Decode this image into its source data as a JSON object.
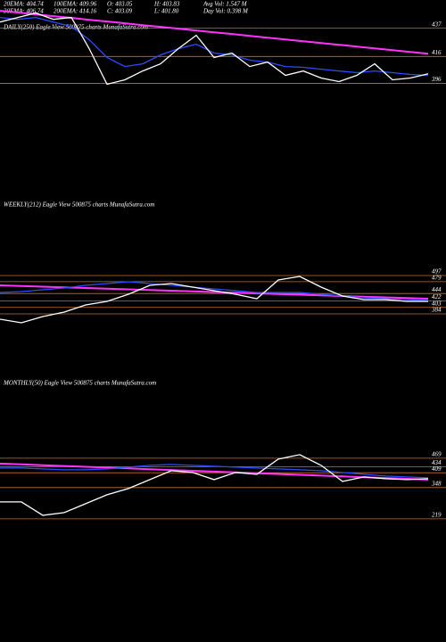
{
  "header": {
    "row1": [
      "20EMA: 404.74",
      "100EMA: 409.96",
      "O: 403.05",
      "H: 403.83",
      "Avg Vol: 1.547 M"
    ],
    "row2": [
      "30EMA: 406.74",
      "200EMA: 414.16",
      "C: 403.09",
      "L: 401.80",
      "Day Vol: 0.398 M"
    ]
  },
  "chart_data": [
    {
      "type": "line",
      "title": "DAILY(250) Eagle  View  500875 charts MunafaSutra.com",
      "ylim": [
        312,
        458
      ],
      "yticks": [
        437,
        416,
        396
      ],
      "grid": true,
      "grid_color": "#c8702a",
      "series": [
        {
          "color": "#ff33ff",
          "values": [
            450,
            448.7,
            447.3,
            446,
            444.7,
            443.3,
            442,
            440.7,
            439.3,
            438,
            436.7,
            435.3,
            434,
            432.7,
            431.3,
            430,
            428.7,
            427.3,
            426,
            424.7,
            423.3,
            422,
            420.7,
            419.3,
            418
          ]
        },
        {
          "color": "#2a4dff",
          "values": [
            445.0,
            443.6,
            445.0,
            441.6,
            438.3,
            428.4,
            415.2,
            408.5,
            410.5,
            417.1,
            421.8,
            425.1,
            418.5,
            417.1,
            413.2,
            411.8,
            408.5,
            407.9,
            406.5,
            405.2,
            403.9,
            405.2,
            403.9,
            402.6,
            401.9
          ]
        },
        {
          "color": "#ffffff",
          "values": [
            441.6,
            445.0,
            448.3,
            443.6,
            445.0,
            421.8,
            395.3,
            398.6,
            405.2,
            410.5,
            421.8,
            431.7,
            415.2,
            418.5,
            408.5,
            411.8,
            401.9,
            405.2,
            399.9,
            397.3,
            401.9,
            410.5,
            398.6,
            399.9,
            403.1
          ]
        }
      ]
    },
    {
      "type": "line",
      "title": "WEEKLY(212) Eagle  View  500875 charts MunafaSutra.com",
      "ylim": [
        126,
        705
      ],
      "yticks": [
        497,
        479,
        444,
        422,
        403,
        384
      ],
      "grid": true,
      "grid_color": "#c8702a",
      "series": [
        {
          "color": "#ff33ff",
          "values": [
            468.1,
            466.1,
            464.2,
            462.2,
            460.2,
            458.2,
            456.2,
            454.3,
            452.3,
            450.3,
            448.4,
            446.4,
            444.4,
            442.4,
            440.4,
            438.5,
            436.5,
            434.5,
            432.5,
            430.6,
            428.6
          ]
        },
        {
          "color": "#2a4dff",
          "values": [
            447,
            449.6,
            454.9,
            460.2,
            468.1,
            473.3,
            478.6,
            473.3,
            468.1,
            462.8,
            457.5,
            452.3,
            447,
            447,
            447,
            441.7,
            436.5,
            431.2,
            428.6,
            425.9,
            423.3
          ]
        },
        {
          "color": "#ffffff",
          "values": [
            368.1,
            357.5,
            376.0,
            389.1,
            410.2,
            420.7,
            441.7,
            468.1,
            473.3,
            462.8,
            452.3,
            441.7,
            428.6,
            483.8,
            494.4,
            462.8,
            436.5,
            425.9,
            425.9,
            420.7,
            420.7
          ]
        }
      ]
    },
    {
      "type": "line",
      "title": "MONTHLY(50) Eagle  View  500875 charts MunafaSutra.com",
      "ylim": [
        -215,
        667
      ],
      "yticks": [
        469,
        434,
        409,
        348,
        219
      ],
      "grid": true,
      "grid_color": "#c8702a",
      "series": [
        {
          "color": "#ff33ff",
          "values": [
            447,
            443.7,
            440.4,
            437.1,
            433.8,
            430.5,
            427.1,
            423.8,
            420.5,
            417.2,
            413.9,
            410.6,
            407.3,
            404,
            400.7,
            397.4,
            394,
            390.7,
            387.4,
            384.1,
            380.8
          ]
        },
        {
          "color": "#2a4dff",
          "values": [
            428.6,
            428.6,
            424.9,
            421.2,
            421.2,
            424.9,
            432.2,
            439.6,
            443.3,
            439.6,
            435.9,
            432.2,
            428.6,
            424.9,
            421.2,
            417.5,
            410.2,
            402.8,
            395.5,
            391.8,
            388.1
          ]
        },
        {
          "color": "#ffffff",
          "values": [
            288.9,
            288.9,
            233.7,
            244.7,
            281.5,
            318.3,
            344,
            380.8,
            417.5,
            410.2,
            380.8,
            410.2,
            402.8,
            465.3,
            483.7,
            439.6,
            373.4,
            391.8,
            384.4,
            380.8,
            384.4
          ]
        }
      ]
    }
  ]
}
